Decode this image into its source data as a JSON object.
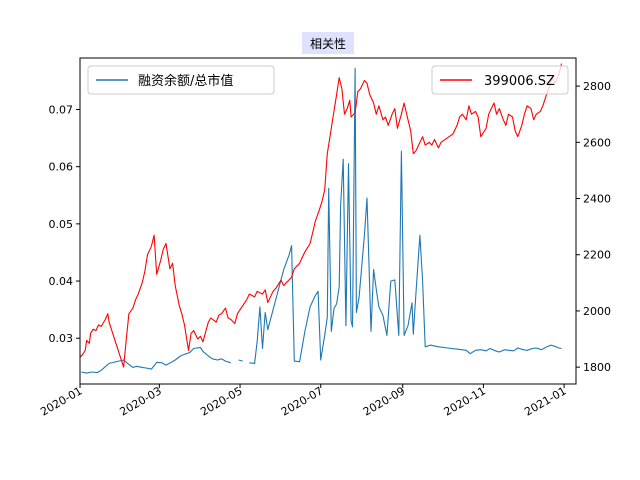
{
  "chart_data": {
    "type": "line",
    "title": "相关性",
    "title_bg": "#e0e0ff",
    "x_ticks": [
      "2020-01",
      "2020-03",
      "2020-05",
      "2020-07",
      "2020-09",
      "2020-11",
      "2021-01"
    ],
    "x_range": [
      "2020-01-01",
      "2021-01-10"
    ],
    "y_left": {
      "range": [
        0.022,
        0.079
      ],
      "ticks": [
        "0.03",
        "0.04",
        "0.05",
        "0.06",
        "0.07"
      ]
    },
    "y_right": {
      "range": [
        1740,
        2900
      ],
      "ticks": [
        "1800",
        "2000",
        "2200",
        "2400",
        "2600",
        "2800"
      ]
    },
    "series": [
      {
        "name": "融资余额/总市值",
        "color": "#1f77b4",
        "axis": "left",
        "legend_position": "upper-left",
        "points": [
          [
            "2020-01-02",
            0.0241
          ],
          [
            "2020-01-06",
            0.0239
          ],
          [
            "2020-01-10",
            0.0241
          ],
          [
            "2020-01-14",
            0.024
          ],
          [
            "2020-01-17",
            0.0244
          ],
          [
            "2020-01-21",
            0.0252
          ],
          [
            "2020-01-23",
            0.0256
          ],
          [
            "2020-02-03",
            0.0262
          ],
          [
            "2020-02-06",
            0.0256
          ],
          [
            "2020-02-10",
            0.0249
          ],
          [
            "2020-02-13",
            0.0251
          ],
          [
            "2020-02-17",
            0.0249
          ],
          [
            "2020-02-20",
            0.0248
          ],
          [
            "2020-02-24",
            0.0246
          ],
          [
            "2020-02-28",
            0.0258
          ],
          [
            "2020-03-03",
            0.0257
          ],
          [
            "2020-03-06",
            0.0253
          ],
          [
            "2020-03-10",
            0.0258
          ],
          [
            "2020-03-13",
            0.0262
          ],
          [
            "2020-03-17",
            0.0269
          ],
          [
            "2020-03-20",
            0.0272
          ],
          [
            "2020-03-24",
            0.0275
          ],
          [
            "2020-03-27",
            0.0282
          ],
          [
            "2020-04-01",
            0.0284
          ],
          [
            "2020-04-03",
            0.0277
          ],
          [
            "2020-04-07",
            0.0269
          ],
          [
            "2020-04-10",
            0.0264
          ],
          [
            "2020-04-14",
            0.0262
          ],
          [
            "2020-04-17",
            0.0264
          ],
          [
            "2020-04-20",
            0.026
          ],
          [
            "2020-04-24",
            0.0257
          ],
          [
            "2020-04-28",
            null
          ],
          [
            "2020-04-30",
            0.0262
          ],
          [
            "2020-05-03",
            0.026
          ],
          [
            "2020-05-06",
            null
          ],
          [
            "2020-05-08",
            0.0257
          ],
          [
            "2020-05-12",
            0.0256
          ],
          [
            "2020-05-14",
            0.0295
          ],
          [
            "2020-05-16",
            0.0355
          ],
          [
            "2020-05-18",
            0.0282
          ],
          [
            "2020-05-20",
            0.0345
          ],
          [
            "2020-05-22",
            0.0315
          ],
          [
            "2020-05-26",
            0.035
          ],
          [
            "2020-05-30",
            0.0385
          ],
          [
            "2020-06-03",
            0.042
          ],
          [
            "2020-06-07",
            0.0445
          ],
          [
            "2020-06-09",
            0.0462
          ],
          [
            "2020-06-11",
            0.026
          ],
          [
            "2020-06-15",
            0.0259
          ],
          [
            "2020-06-19",
            0.0312
          ],
          [
            "2020-06-23",
            0.0355
          ],
          [
            "2020-06-27",
            0.0375
          ],
          [
            "2020-06-29",
            0.0382
          ],
          [
            "2020-07-01",
            0.0262
          ],
          [
            "2020-07-04",
            0.0305
          ],
          [
            "2020-07-06",
            0.0337
          ],
          [
            "2020-07-07",
            0.0562
          ],
          [
            "2020-07-09",
            0.0312
          ],
          [
            "2020-07-11",
            0.0352
          ],
          [
            "2020-07-13",
            0.036
          ],
          [
            "2020-07-15",
            0.039
          ],
          [
            "2020-07-16",
            0.0532
          ],
          [
            "2020-07-18",
            0.0613
          ],
          [
            "2020-07-20",
            0.0322
          ],
          [
            "2020-07-22",
            0.0605
          ],
          [
            "2020-07-24",
            0.033
          ],
          [
            "2020-07-25",
            0.032
          ],
          [
            "2020-07-27",
            0.0772
          ],
          [
            "2020-07-28",
            0.0345
          ],
          [
            "2020-07-30",
            0.0372
          ],
          [
            "2020-08-03",
            0.048
          ],
          [
            "2020-08-05",
            0.0545
          ],
          [
            "2020-08-08",
            0.0312
          ],
          [
            "2020-08-10",
            0.042
          ],
          [
            "2020-08-12",
            0.0385
          ],
          [
            "2020-08-14",
            0.0355
          ],
          [
            "2020-08-17",
            0.034
          ],
          [
            "2020-08-20",
            0.0305
          ],
          [
            "2020-08-23",
            0.04
          ],
          [
            "2020-08-26",
            0.0402
          ],
          [
            "2020-08-29",
            0.0305
          ],
          [
            "2020-08-31",
            0.0627
          ],
          [
            "2020-09-02",
            0.0305
          ],
          [
            "2020-09-05",
            0.0322
          ],
          [
            "2020-09-08",
            0.0362
          ],
          [
            "2020-09-09",
            0.0307
          ],
          [
            "2020-09-11",
            0.038
          ],
          [
            "2020-09-14",
            0.048
          ],
          [
            "2020-09-16",
            0.04
          ],
          [
            "2020-09-18",
            0.0285
          ],
          [
            "2020-09-22",
            0.0288
          ],
          [
            "2020-09-28",
            0.0285
          ],
          [
            "2020-10-05",
            0.0283
          ],
          [
            "2020-10-12",
            0.0281
          ],
          [
            "2020-10-19",
            0.0279
          ],
          [
            "2020-10-22",
            0.0273
          ],
          [
            "2020-10-26",
            0.0279
          ],
          [
            "2020-10-30",
            0.028
          ],
          [
            "2020-11-03",
            0.0278
          ],
          [
            "2020-11-06",
            0.0282
          ],
          [
            "2020-11-10",
            0.0278
          ],
          [
            "2020-11-13",
            0.0276
          ],
          [
            "2020-11-17",
            0.028
          ],
          [
            "2020-11-20",
            0.0279
          ],
          [
            "2020-11-24",
            0.0278
          ],
          [
            "2020-11-27",
            0.0283
          ],
          [
            "2020-12-01",
            0.028
          ],
          [
            "2020-12-04",
            0.0279
          ],
          [
            "2020-12-08",
            0.0282
          ],
          [
            "2020-12-11",
            0.0283
          ],
          [
            "2020-12-15",
            0.028
          ],
          [
            "2020-12-18",
            0.0284
          ],
          [
            "2020-12-22",
            0.0288
          ],
          [
            "2020-12-25",
            0.0286
          ],
          [
            "2020-12-28",
            0.0283
          ],
          [
            "2020-12-30",
            0.0282
          ]
        ]
      },
      {
        "name": "399006.SZ",
        "color": "#ff0000",
        "axis": "right",
        "legend_position": "upper-right",
        "points": [
          [
            "2020-01-01",
            1835
          ],
          [
            "2020-01-03",
            1845
          ],
          [
            "2020-01-05",
            1860
          ],
          [
            "2020-01-06",
            1895
          ],
          [
            "2020-01-08",
            1885
          ],
          [
            "2020-01-09",
            1920
          ],
          [
            "2020-01-11",
            1935
          ],
          [
            "2020-01-13",
            1930
          ],
          [
            "2020-01-15",
            1950
          ],
          [
            "2020-01-17",
            1945
          ],
          [
            "2020-01-20",
            1968
          ],
          [
            "2020-01-22",
            1990
          ],
          [
            "2020-01-23",
            1960
          ],
          [
            "2020-02-03",
            1800
          ],
          [
            "2020-02-05",
            1900
          ],
          [
            "2020-02-07",
            1990
          ],
          [
            "2020-02-10",
            2010
          ],
          [
            "2020-02-12",
            2040
          ],
          [
            "2020-02-14",
            2060
          ],
          [
            "2020-02-17",
            2100
          ],
          [
            "2020-02-19",
            2140
          ],
          [
            "2020-02-21",
            2200
          ],
          [
            "2020-02-24",
            2230
          ],
          [
            "2020-02-26",
            2270
          ],
          [
            "2020-02-28",
            2130
          ],
          [
            "2020-03-02",
            2180
          ],
          [
            "2020-03-04",
            2220
          ],
          [
            "2020-03-06",
            2240
          ],
          [
            "2020-03-09",
            2150
          ],
          [
            "2020-03-11",
            2170
          ],
          [
            "2020-03-13",
            2090
          ],
          [
            "2020-03-16",
            2020
          ],
          [
            "2020-03-18",
            1990
          ],
          [
            "2020-03-20",
            1950
          ],
          [
            "2020-03-23",
            1860
          ],
          [
            "2020-03-25",
            1920
          ],
          [
            "2020-03-27",
            1930
          ],
          [
            "2020-03-30",
            1900
          ],
          [
            "2020-04-01",
            1910
          ],
          [
            "2020-04-03",
            1890
          ],
          [
            "2020-04-07",
            1960
          ],
          [
            "2020-04-09",
            1975
          ],
          [
            "2020-04-13",
            1960
          ],
          [
            "2020-04-15",
            1985
          ],
          [
            "2020-04-17",
            1990
          ],
          [
            "2020-04-20",
            2010
          ],
          [
            "2020-04-22",
            1975
          ],
          [
            "2020-04-24",
            1970
          ],
          [
            "2020-04-27",
            1955
          ],
          [
            "2020-04-29",
            1990
          ],
          [
            "2020-05-06",
            2040
          ],
          [
            "2020-05-08",
            2060
          ],
          [
            "2020-05-12",
            2050
          ],
          [
            "2020-05-14",
            2070
          ],
          [
            "2020-05-18",
            2060
          ],
          [
            "2020-05-20",
            2075
          ],
          [
            "2020-05-22",
            2030
          ],
          [
            "2020-05-26",
            2070
          ],
          [
            "2020-05-28",
            2080
          ],
          [
            "2020-06-01",
            2110
          ],
          [
            "2020-06-03",
            2090
          ],
          [
            "2020-06-05",
            2100
          ],
          [
            "2020-06-09",
            2120
          ],
          [
            "2020-06-11",
            2150
          ],
          [
            "2020-06-15",
            2170
          ],
          [
            "2020-06-17",
            2190
          ],
          [
            "2020-06-19",
            2210
          ],
          [
            "2020-06-23",
            2240
          ],
          [
            "2020-06-27",
            2320
          ],
          [
            "2020-06-30",
            2360
          ],
          [
            "2020-07-02",
            2390
          ],
          [
            "2020-07-04",
            2430
          ],
          [
            "2020-07-06",
            2560
          ],
          [
            "2020-07-08",
            2620
          ],
          [
            "2020-07-10",
            2680
          ],
          [
            "2020-07-12",
            2740
          ],
          [
            "2020-07-14",
            2800
          ],
          [
            "2020-07-15",
            2830
          ],
          [
            "2020-07-17",
            2790
          ],
          [
            "2020-07-19",
            2700
          ],
          [
            "2020-07-21",
            2720
          ],
          [
            "2020-07-23",
            2750
          ],
          [
            "2020-07-24",
            2690
          ],
          [
            "2020-07-27",
            2705
          ],
          [
            "2020-07-29",
            2780
          ],
          [
            "2020-07-31",
            2790
          ],
          [
            "2020-08-03",
            2820
          ],
          [
            "2020-08-05",
            2810
          ],
          [
            "2020-08-07",
            2770
          ],
          [
            "2020-08-10",
            2740
          ],
          [
            "2020-08-12",
            2700
          ],
          [
            "2020-08-14",
            2730
          ],
          [
            "2020-08-17",
            2680
          ],
          [
            "2020-08-19",
            2690
          ],
          [
            "2020-08-21",
            2660
          ],
          [
            "2020-08-24",
            2700
          ],
          [
            "2020-08-26",
            2720
          ],
          [
            "2020-08-28",
            2650
          ],
          [
            "2020-08-31",
            2700
          ],
          [
            "2020-09-02",
            2740
          ],
          [
            "2020-09-04",
            2700
          ],
          [
            "2020-09-07",
            2640
          ],
          [
            "2020-09-09",
            2560
          ],
          [
            "2020-09-11",
            2570
          ],
          [
            "2020-09-14",
            2600
          ],
          [
            "2020-09-16",
            2620
          ],
          [
            "2020-09-18",
            2590
          ],
          [
            "2020-09-21",
            2600
          ],
          [
            "2020-09-23",
            2590
          ],
          [
            "2020-09-25",
            2610
          ],
          [
            "2020-09-28",
            2580
          ],
          [
            "2020-09-30",
            2600
          ],
          [
            "2020-10-09",
            2630
          ],
          [
            "2020-10-12",
            2660
          ],
          [
            "2020-10-14",
            2690
          ],
          [
            "2020-10-16",
            2700
          ],
          [
            "2020-10-19",
            2680
          ],
          [
            "2020-10-21",
            2730
          ],
          [
            "2020-10-23",
            2700
          ],
          [
            "2020-10-26",
            2710
          ],
          [
            "2020-10-28",
            2690
          ],
          [
            "2020-10-30",
            2620
          ],
          [
            "2020-11-03",
            2650
          ],
          [
            "2020-11-05",
            2700
          ],
          [
            "2020-11-09",
            2740
          ],
          [
            "2020-11-11",
            2700
          ],
          [
            "2020-11-13",
            2720
          ],
          [
            "2020-11-16",
            2680
          ],
          [
            "2020-11-18",
            2660
          ],
          [
            "2020-11-20",
            2700
          ],
          [
            "2020-11-23",
            2690
          ],
          [
            "2020-11-25",
            2640
          ],
          [
            "2020-11-27",
            2620
          ],
          [
            "2020-11-30",
            2660
          ],
          [
            "2020-12-02",
            2700
          ],
          [
            "2020-12-04",
            2730
          ],
          [
            "2020-12-07",
            2720
          ],
          [
            "2020-12-09",
            2680
          ],
          [
            "2020-12-11",
            2700
          ],
          [
            "2020-12-14",
            2710
          ],
          [
            "2020-12-16",
            2730
          ],
          [
            "2020-12-18",
            2760
          ],
          [
            "2020-12-21",
            2800
          ],
          [
            "2020-12-23",
            2830
          ],
          [
            "2020-12-25",
            2810
          ],
          [
            "2020-12-28",
            2840
          ],
          [
            "2020-12-30",
            2880
          ]
        ]
      }
    ]
  }
}
